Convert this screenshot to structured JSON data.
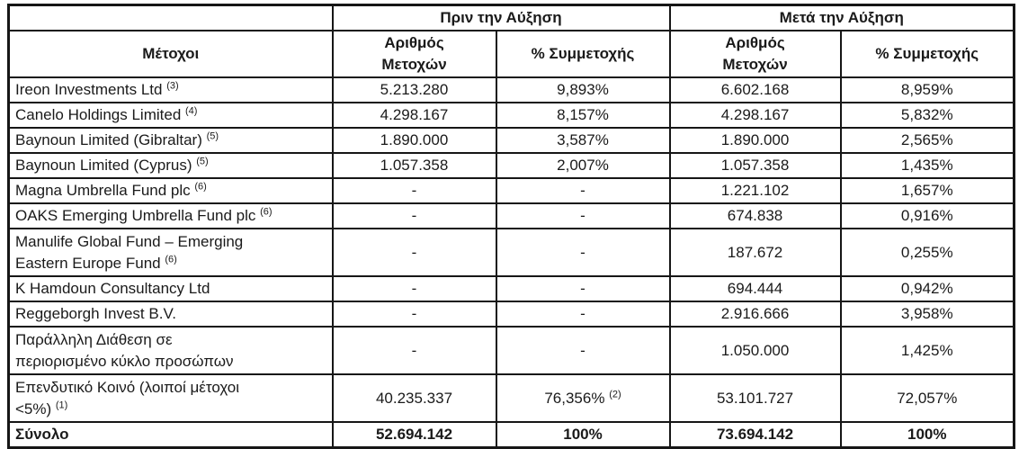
{
  "table": {
    "header": {
      "corner": "",
      "group_before": "Πριν την Αύξηση",
      "group_after": "Μετά την Αύξηση",
      "shareholders": "Μέτοχοι",
      "shares_before": "Αριθμός\nΜετοχών",
      "pct_before": "% Συμμετοχής",
      "shares_after": "Αριθμός\nΜετοχών",
      "pct_after": "% Συμμετοχής"
    },
    "rows": [
      {
        "name": "Ireon Investments Ltd",
        "sup": "(3)",
        "before_shares": "5.213.280",
        "before_pct": "9,893%",
        "after_shares": "6.602.168",
        "after_pct": "8,959%"
      },
      {
        "name": "Canelo Holdings Limited",
        "sup": "(4)",
        "before_shares": "4.298.167",
        "before_pct": "8,157%",
        "after_shares": "4.298.167",
        "after_pct": "5,832%"
      },
      {
        "name": "Baynoun Limited (Gibraltar)",
        "sup": "(5)",
        "before_shares": "1.890.000",
        "before_pct": "3,587%",
        "after_shares": "1.890.000",
        "after_pct": "2,565%"
      },
      {
        "name": "Baynoun Limited (Cyprus)",
        "sup": "(5)",
        "before_shares": "1.057.358",
        "before_pct": "2,007%",
        "after_shares": "1.057.358",
        "after_pct": "1,435%"
      },
      {
        "name": "Magna Umbrella Fund plc",
        "sup": "(6)",
        "before_shares": "-",
        "before_pct": "-",
        "after_shares": "1.221.102",
        "after_pct": "1,657%"
      },
      {
        "name": "OAKS Emerging Umbrella Fund plc",
        "sup": "(6)",
        "before_shares": "-",
        "before_pct": "-",
        "after_shares": "674.838",
        "after_pct": "0,916%"
      },
      {
        "name": "Manulife Global Fund – Emerging\nEastern Europe Fund",
        "sup": "(6)",
        "tall": true,
        "before_shares": "-",
        "before_pct": "-",
        "after_shares": "187.672",
        "after_pct": "0,255%"
      },
      {
        "name": "K Hamdoun Consultancy Ltd",
        "before_shares": "-",
        "before_pct": "-",
        "after_shares": "694.444",
        "after_pct": "0,942%"
      },
      {
        "name": "Reggeborgh Invest B.V.",
        "before_shares": "-",
        "before_pct": "-",
        "after_shares": "2.916.666",
        "after_pct": "3,958%"
      },
      {
        "name": "Παράλληλη Διάθεση σε\nπεριορισμένο κύκλο προσώπων",
        "tall": true,
        "before_shares": "-",
        "before_pct": "-",
        "after_shares": "1.050.000",
        "after_pct": "1,425%"
      },
      {
        "name": "Επενδυτικό Κοινό (λοιποί μέτοχοι\n<5%)",
        "sup": "(1)",
        "tall": true,
        "before_shares": "40.235.337",
        "before_pct": "76,356%",
        "before_pct_sup": "(2)",
        "after_shares": "53.101.727",
        "after_pct": "72,057%"
      },
      {
        "name": "Σύνολο",
        "total": true,
        "before_shares": "52.694.142",
        "before_pct": "100%",
        "after_shares": "73.694.142",
        "after_pct": "100%"
      }
    ]
  }
}
